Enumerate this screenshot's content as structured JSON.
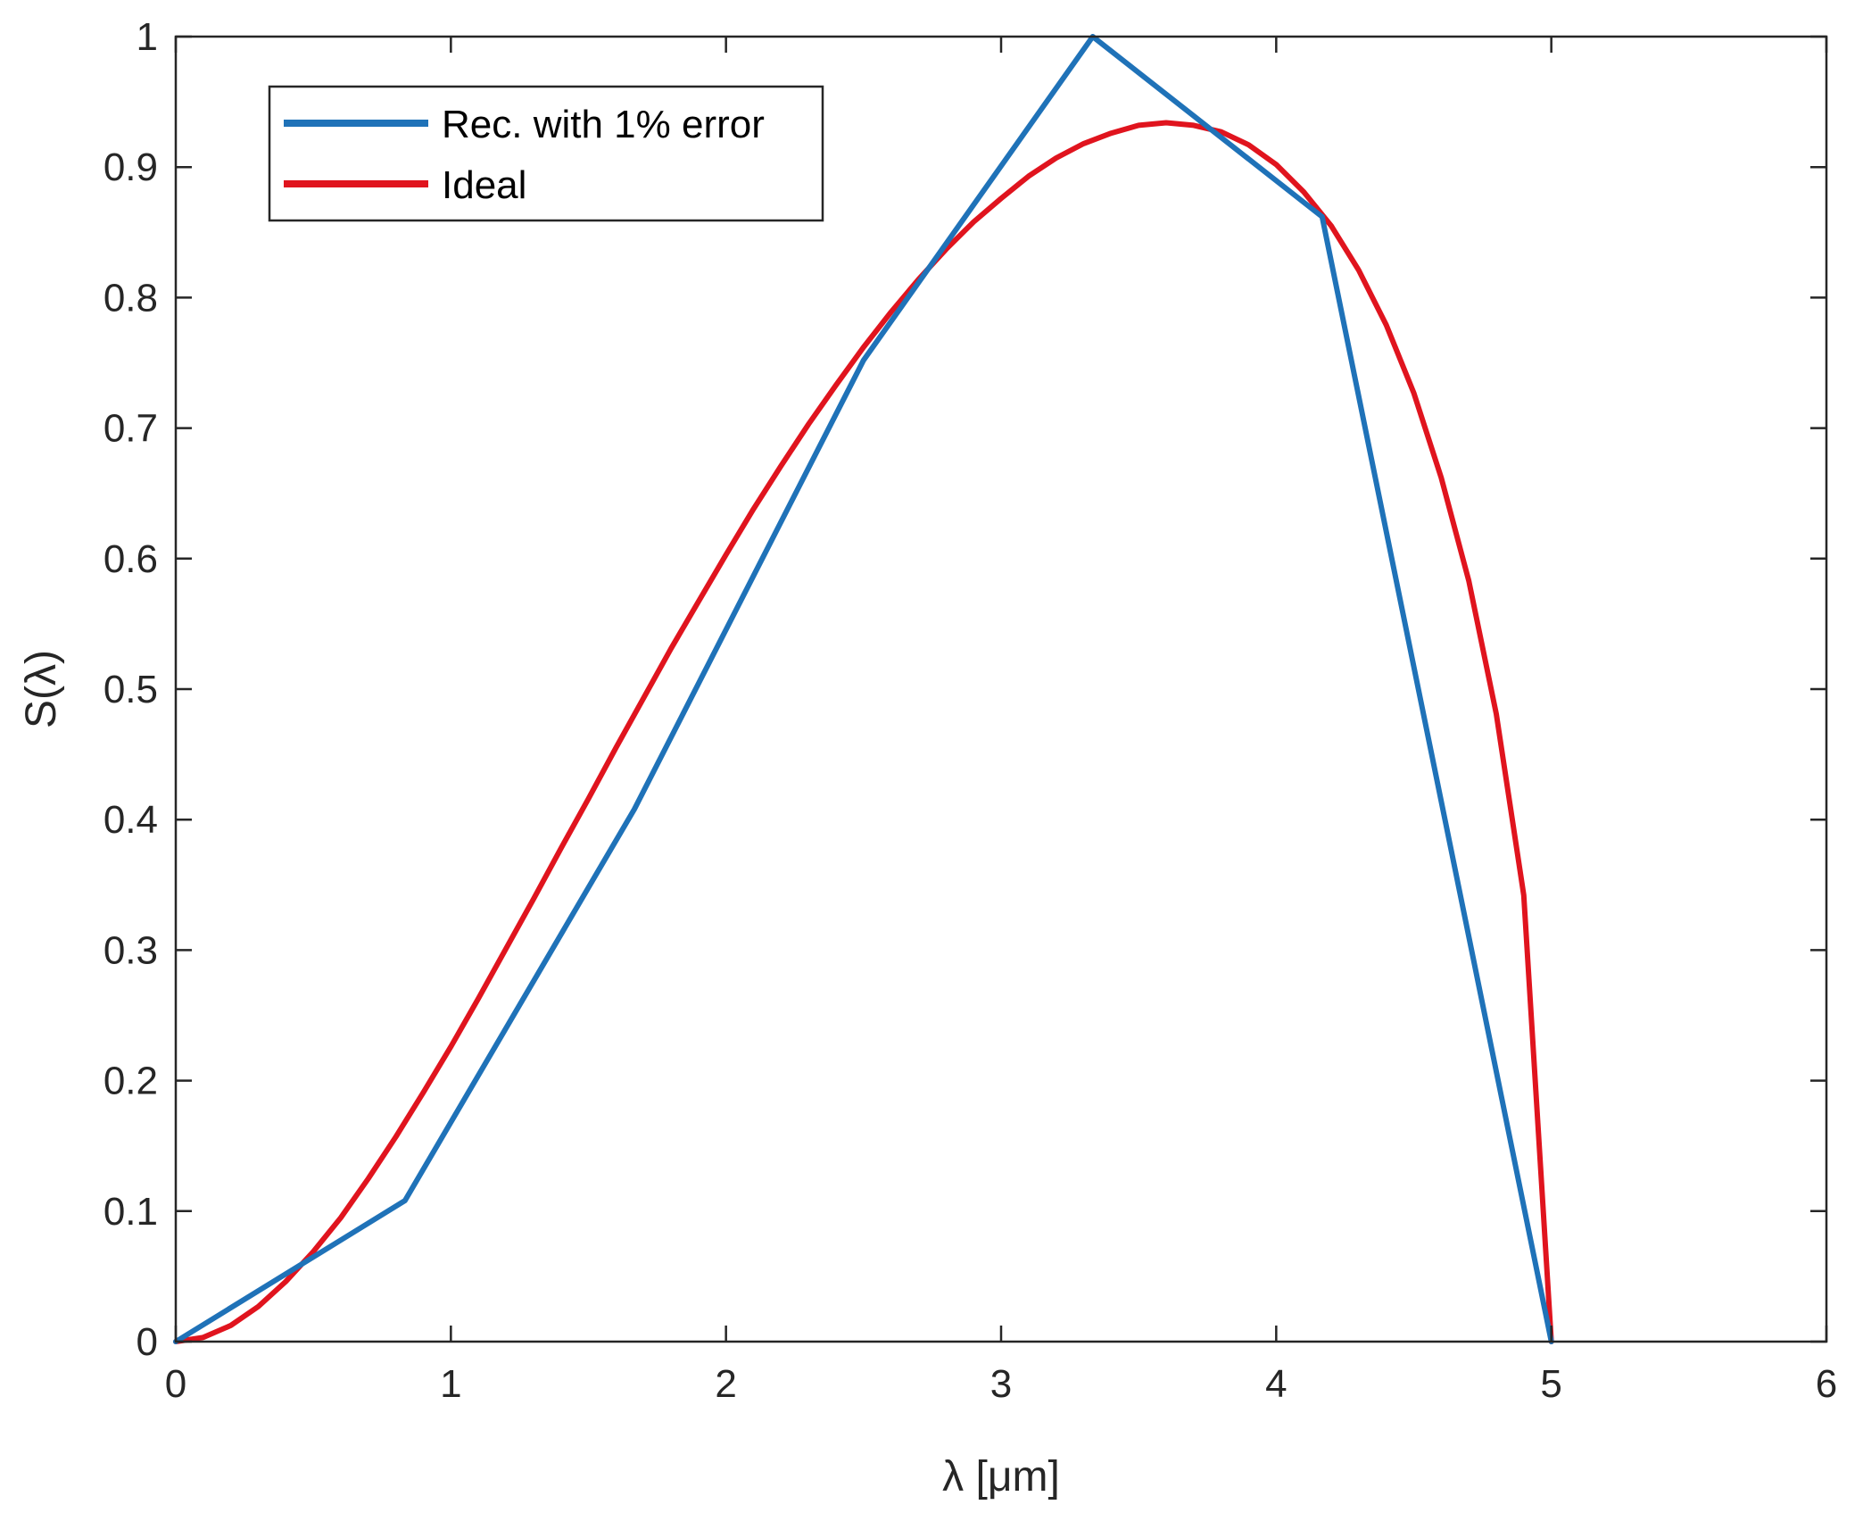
{
  "chart_data": {
    "type": "line",
    "title": "",
    "xlabel": "λ [μm]",
    "ylabel": "S(λ)",
    "xlim": [
      0,
      6
    ],
    "ylim": [
      0,
      1
    ],
    "xticks": [
      0,
      1,
      2,
      3,
      4,
      5,
      6
    ],
    "xtick_labels": [
      "0",
      "1",
      "2",
      "3",
      "4",
      "5",
      "6"
    ],
    "yticks": [
      0,
      0.1,
      0.2,
      0.3,
      0.4,
      0.5,
      0.6,
      0.7,
      0.8,
      0.9,
      1
    ],
    "ytick_labels": [
      "0",
      "0.1",
      "0.2",
      "0.3",
      "0.4",
      "0.5",
      "0.6",
      "0.7",
      "0.8",
      "0.9",
      "1"
    ],
    "grid": false,
    "legend_position": "top-left",
    "series": [
      {
        "name": "Rec. with 1% error",
        "color": "#1f72b8",
        "x": [
          0,
          0.833,
          1.667,
          2.5,
          3.333,
          4.167,
          5.0
        ],
        "y": [
          0,
          0.108,
          0.408,
          0.752,
          1.0,
          0.862,
          0.0
        ]
      },
      {
        "name": "Ideal",
        "color": "#e0141e",
        "x": [
          0,
          0.1,
          0.2,
          0.3,
          0.4,
          0.5,
          0.6,
          0.7,
          0.8,
          0.9,
          1.0,
          1.1,
          1.2,
          1.3,
          1.4,
          1.5,
          1.6,
          1.7,
          1.8,
          1.9,
          2.0,
          2.1,
          2.2,
          2.3,
          2.4,
          2.5,
          2.6,
          2.7,
          2.8,
          2.9,
          3.0,
          3.1,
          3.2,
          3.3,
          3.4,
          3.5,
          3.6,
          3.7,
          3.8,
          3.9,
          4.0,
          4.1,
          4.2,
          4.3,
          4.4,
          4.5,
          4.6,
          4.7,
          4.8,
          4.9,
          5.0
        ],
        "y": [
          0.0,
          0.0032,
          0.0124,
          0.0269,
          0.046,
          0.069,
          0.095,
          0.125,
          0.157,
          0.191,
          0.226,
          0.263,
          0.301,
          0.339,
          0.378,
          0.416,
          0.455,
          0.493,
          0.531,
          0.567,
          0.603,
          0.638,
          0.671,
          0.703,
          0.733,
          0.762,
          0.789,
          0.814,
          0.837,
          0.858,
          0.876,
          0.893,
          0.907,
          0.918,
          0.926,
          0.932,
          0.934,
          0.932,
          0.927,
          0.917,
          0.902,
          0.881,
          0.855,
          0.821,
          0.779,
          0.727,
          0.662,
          0.583,
          0.481,
          0.342,
          0.0
        ]
      }
    ]
  }
}
